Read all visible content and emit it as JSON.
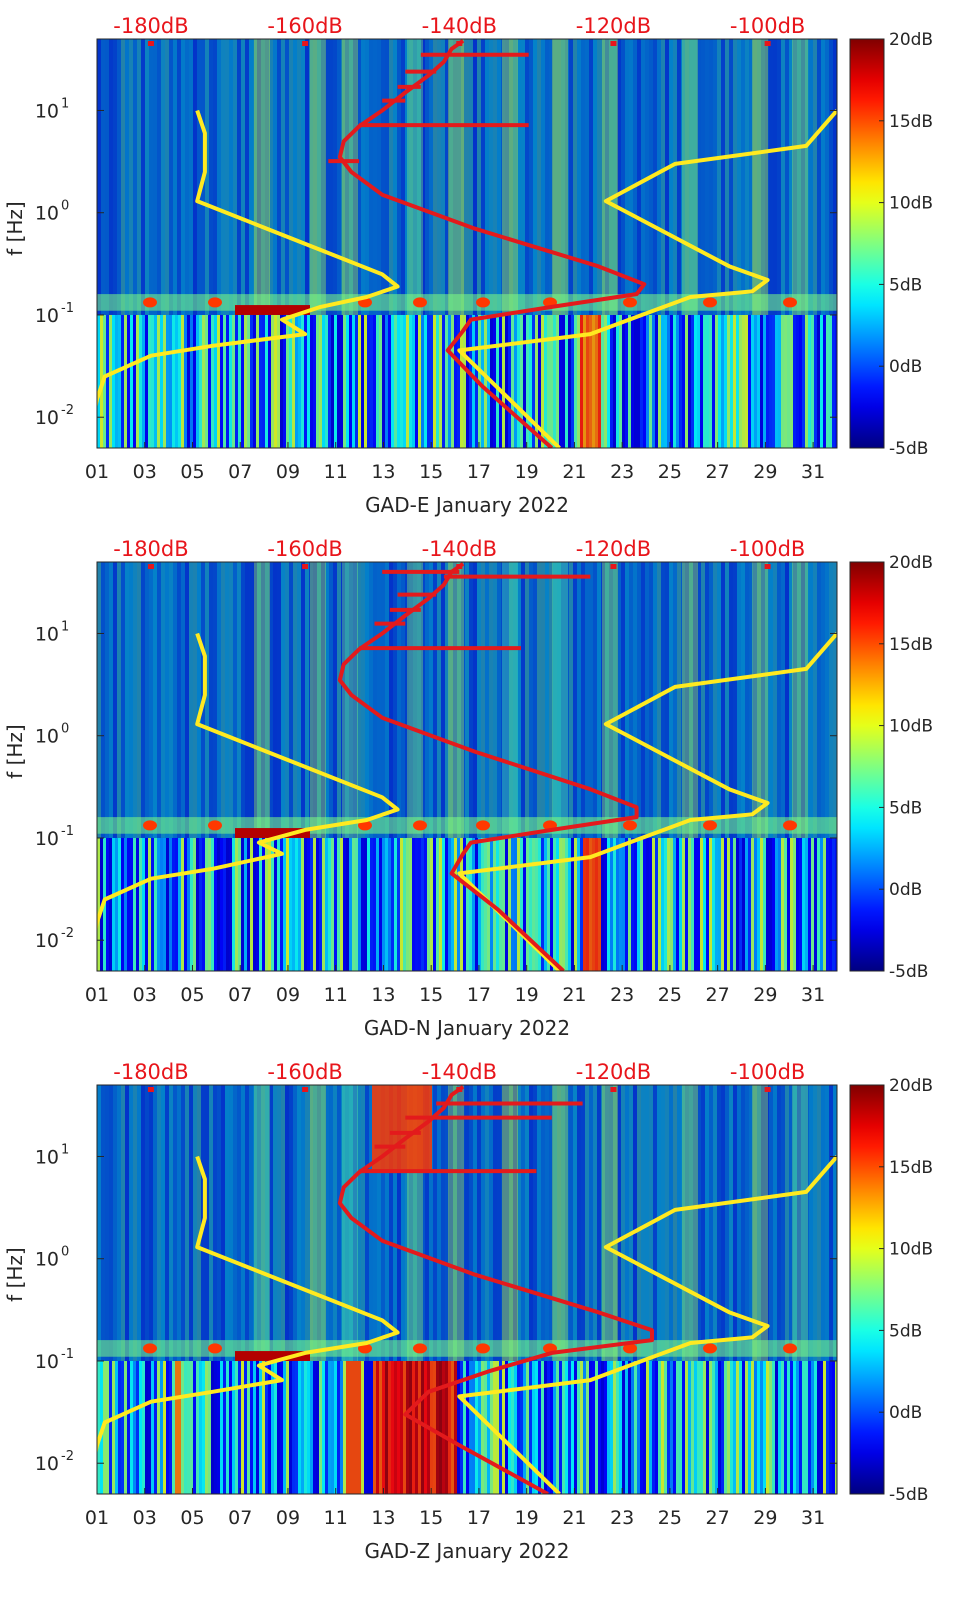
{
  "colors": {
    "yellow_curve": "#ffea20",
    "red_curve": "#e31a1c",
    "top_axis_text": "#e8151b",
    "spectrogram_background": "#071d9e",
    "axis_text": "#262626"
  },
  "colormap": "jet",
  "chart_data": [
    {
      "type": "heatmap",
      "title": "",
      "xlabel": "GAD-E January 2022",
      "ylabel": "f [Hz]",
      "x_range": [
        1,
        32
      ],
      "y_range": [
        0.005,
        50
      ],
      "y_scale": "log",
      "x_ticks": [
        "01",
        "03",
        "05",
        "07",
        "09",
        "11",
        "13",
        "15",
        "17",
        "19",
        "21",
        "23",
        "25",
        "27",
        "29",
        "31"
      ],
      "y_ticks": [
        {
          "value": 0.01,
          "base": "10",
          "exp": "-2"
        },
        {
          "value": 0.1,
          "base": "10",
          "exp": "-1"
        },
        {
          "value": 1,
          "base": "10",
          "exp": "0"
        },
        {
          "value": 10,
          "base": "10",
          "exp": "1"
        }
      ],
      "top_axis": {
        "labels": [
          "-180dB",
          "-160dB",
          "-140dB",
          "-120dB",
          "-100dB"
        ],
        "range": [
          -187,
          -91
        ]
      },
      "colorbar": {
        "labels": [
          "20dB",
          "15dB",
          "10dB",
          "5dB",
          "0dB",
          "-5dB"
        ],
        "range": [
          -5,
          20
        ]
      },
      "overlay_curves": [
        {
          "color": "yellow",
          "axis": "top_dB",
          "points": [
            [
              -188,
              0.005
            ],
            [
              -187.5,
              0.01
            ],
            [
              -187,
              0.015
            ],
            [
              -186,
              0.025
            ],
            [
              -180,
              0.04
            ],
            [
              -172,
              0.05
            ],
            [
              -160,
              0.065
            ],
            [
              -163,
              0.09
            ],
            [
              -158,
              0.12
            ],
            [
              -152,
              0.15
            ],
            [
              -148,
              0.19
            ],
            [
              -150,
              0.25
            ],
            [
              -165,
              0.7
            ],
            [
              -174,
              1.3
            ],
            [
              -173,
              2.5
            ],
            [
              -173,
              6
            ],
            [
              -174,
              10
            ]
          ]
        },
        {
          "color": "yellow",
          "axis": "top_dB",
          "points": [
            [
              -91,
              10
            ],
            [
              -95,
              4.5
            ],
            [
              -112,
              3.0
            ],
            [
              -121,
              1.3
            ],
            [
              -105,
              0.3
            ],
            [
              -100,
              0.22
            ],
            [
              -102,
              0.17
            ],
            [
              -110,
              0.15
            ],
            [
              -123,
              0.065
            ],
            [
              -140,
              0.045
            ],
            [
              -127,
              0.005
            ]
          ]
        },
        {
          "color": "red",
          "axis": "top_dB",
          "points": [
            [
              -128,
              0.005
            ],
            [
              -137,
              0.02
            ],
            [
              -141.5,
              0.045
            ],
            [
              -139.5,
              0.07
            ],
            [
              -138.5,
              0.09
            ],
            [
              -128,
              0.12
            ],
            [
              -117,
              0.16
            ],
            [
              -116,
              0.2
            ],
            [
              -122,
              0.3
            ],
            [
              -138,
              0.7
            ],
            [
              -150,
              1.5
            ],
            [
              -154,
              2.5
            ],
            [
              -155.5,
              3.5
            ],
            [
              -155,
              5
            ],
            [
              -153,
              7
            ],
            [
              -150,
              10
            ],
            [
              -147,
              15
            ],
            [
              -144,
              22
            ],
            [
              -142,
              30
            ],
            [
              -141,
              40
            ],
            [
              -139.5,
              48
            ]
          ]
        },
        {
          "color": "red",
          "axis": "top_dB",
          "points": [
            [
              -131,
              35
            ],
            [
              -145,
              35
            ]
          ]
        },
        {
          "color": "red",
          "axis": "top_dB",
          "points": [
            [
              -131,
              7.2
            ],
            [
              -153,
              7.2
            ]
          ]
        },
        {
          "color": "red",
          "axis": "top_dB",
          "points": [
            [
              -143,
              24
            ],
            [
              -147,
              24
            ]
          ]
        },
        {
          "color": "red",
          "axis": "top_dB",
          "points": [
            [
              -145,
              17
            ],
            [
              -148,
              17
            ]
          ]
        },
        {
          "color": "red",
          "axis": "top_dB",
          "points": [
            [
              -147,
              12.5
            ],
            [
              -150,
              12.5
            ]
          ]
        },
        {
          "color": "red",
          "axis": "top_dB",
          "points": [
            [
              -153,
              3.2
            ],
            [
              -157,
              3.2
            ]
          ]
        }
      ]
    },
    {
      "type": "heatmap",
      "title": "",
      "xlabel": "GAD-N January 2022",
      "ylabel": "f [Hz]",
      "x_range": [
        1,
        32
      ],
      "y_range": [
        0.005,
        50
      ],
      "y_scale": "log",
      "x_ticks": [
        "01",
        "03",
        "05",
        "07",
        "09",
        "11",
        "13",
        "15",
        "17",
        "19",
        "21",
        "23",
        "25",
        "27",
        "29",
        "31"
      ],
      "y_ticks": [
        {
          "value": 0.01,
          "base": "10",
          "exp": "-2"
        },
        {
          "value": 0.1,
          "base": "10",
          "exp": "-1"
        },
        {
          "value": 1,
          "base": "10",
          "exp": "0"
        },
        {
          "value": 10,
          "base": "10",
          "exp": "1"
        }
      ],
      "top_axis": {
        "labels": [
          "-180dB",
          "-160dB",
          "-140dB",
          "-120dB",
          "-100dB"
        ],
        "range": [
          -187,
          -91
        ]
      },
      "colorbar": {
        "labels": [
          "20dB",
          "15dB",
          "10dB",
          "5dB",
          "0dB",
          "-5dB"
        ],
        "range": [
          -5,
          20
        ]
      },
      "overlay_curves": [
        {
          "color": "yellow",
          "axis": "top_dB",
          "points": [
            [
              -188,
              0.005
            ],
            [
              -187.5,
              0.01
            ],
            [
              -187,
              0.015
            ],
            [
              -186,
              0.025
            ],
            [
              -180,
              0.04
            ],
            [
              -172,
              0.05
            ],
            [
              -163,
              0.07
            ],
            [
              -166,
              0.09
            ],
            [
              -160,
              0.12
            ],
            [
              -152,
              0.15
            ],
            [
              -148,
              0.19
            ],
            [
              -150,
              0.25
            ],
            [
              -165,
              0.7
            ],
            [
              -174,
              1.3
            ],
            [
              -173,
              2.5
            ],
            [
              -173,
              6
            ],
            [
              -174,
              10
            ]
          ]
        },
        {
          "color": "yellow",
          "axis": "top_dB",
          "points": [
            [
              -91,
              10
            ],
            [
              -95,
              4.5
            ],
            [
              -112,
              3.0
            ],
            [
              -121,
              1.3
            ],
            [
              -105,
              0.3
            ],
            [
              -100,
              0.22
            ],
            [
              -102,
              0.17
            ],
            [
              -110,
              0.15
            ],
            [
              -123,
              0.065
            ],
            [
              -140,
              0.045
            ],
            [
              -127,
              0.005
            ]
          ]
        },
        {
          "color": "red",
          "axis": "top_dB",
          "points": [
            [
              -126.5,
              0.005
            ],
            [
              -135,
              0.02
            ],
            [
              -141,
              0.045
            ],
            [
              -139.5,
              0.07
            ],
            [
              -138.5,
              0.09
            ],
            [
              -128,
              0.12
            ],
            [
              -117,
              0.16
            ],
            [
              -117,
              0.2
            ],
            [
              -123,
              0.3
            ],
            [
              -138,
              0.7
            ],
            [
              -150,
              1.5
            ],
            [
              -154,
              2.5
            ],
            [
              -155.5,
              3.5
            ],
            [
              -155,
              5
            ],
            [
              -153,
              7
            ],
            [
              -150,
              10
            ],
            [
              -147,
              15
            ],
            [
              -144,
              22
            ],
            [
              -142,
              30
            ],
            [
              -141,
              40
            ],
            [
              -139.5,
              48
            ]
          ]
        },
        {
          "color": "red",
          "axis": "top_dB",
          "points": [
            [
              -123,
              36
            ],
            [
              -142,
              36
            ]
          ]
        },
        {
          "color": "red",
          "axis": "top_dB",
          "points": [
            [
              -132,
              7.2
            ],
            [
              -153,
              7.2
            ]
          ]
        },
        {
          "color": "red",
          "axis": "top_dB",
          "points": [
            [
              -140,
              40
            ],
            [
              -150,
              40
            ]
          ]
        },
        {
          "color": "red",
          "axis": "top_dB",
          "points": [
            [
              -143,
              24
            ],
            [
              -148,
              24
            ]
          ]
        },
        {
          "color": "red",
          "axis": "top_dB",
          "points": [
            [
              -145,
              17
            ],
            [
              -149,
              17
            ]
          ]
        },
        {
          "color": "red",
          "axis": "top_dB",
          "points": [
            [
              -147,
              12.5
            ],
            [
              -151,
              12.5
            ]
          ]
        }
      ]
    },
    {
      "type": "heatmap",
      "title": "",
      "xlabel": "GAD-Z January 2022",
      "ylabel": "f [Hz]",
      "x_range": [
        1,
        32
      ],
      "y_range": [
        0.005,
        50
      ],
      "y_scale": "log",
      "x_ticks": [
        "01",
        "03",
        "05",
        "07",
        "09",
        "11",
        "13",
        "15",
        "17",
        "19",
        "21",
        "23",
        "25",
        "27",
        "29",
        "31"
      ],
      "y_ticks": [
        {
          "value": 0.01,
          "base": "10",
          "exp": "-2"
        },
        {
          "value": 0.1,
          "base": "10",
          "exp": "-1"
        },
        {
          "value": 1,
          "base": "10",
          "exp": "0"
        },
        {
          "value": 10,
          "base": "10",
          "exp": "1"
        }
      ],
      "top_axis": {
        "labels": [
          "-180dB",
          "-160dB",
          "-140dB",
          "-120dB",
          "-100dB"
        ],
        "range": [
          -187,
          -91
        ]
      },
      "colorbar": {
        "labels": [
          "20dB",
          "15dB",
          "10dB",
          "5dB",
          "0dB",
          "-5dB"
        ],
        "range": [
          -5,
          20
        ]
      },
      "overlay_curves": [
        {
          "color": "yellow",
          "axis": "top_dB",
          "points": [
            [
              -188,
              0.005
            ],
            [
              -187.5,
              0.01
            ],
            [
              -187,
              0.015
            ],
            [
              -186,
              0.025
            ],
            [
              -180,
              0.04
            ],
            [
              -172,
              0.05
            ],
            [
              -163,
              0.065
            ],
            [
              -166,
              0.09
            ],
            [
              -160,
              0.12
            ],
            [
              -152,
              0.15
            ],
            [
              -148,
              0.19
            ],
            [
              -150,
              0.25
            ],
            [
              -165,
              0.7
            ],
            [
              -174,
              1.3
            ],
            [
              -173,
              2.5
            ],
            [
              -173,
              6
            ],
            [
              -174,
              10
            ]
          ]
        },
        {
          "color": "yellow",
          "axis": "top_dB",
          "points": [
            [
              -91,
              10
            ],
            [
              -95,
              4.5
            ],
            [
              -112,
              3.0
            ],
            [
              -121,
              1.3
            ],
            [
              -105,
              0.3
            ],
            [
              -100,
              0.22
            ],
            [
              -102,
              0.17
            ],
            [
              -110,
              0.15
            ],
            [
              -123,
              0.065
            ],
            [
              -140,
              0.045
            ],
            [
              -127,
              0.005
            ]
          ]
        },
        {
          "color": "red",
          "axis": "top_dB",
          "points": [
            [
              -128.5,
              0.005
            ],
            [
              -140,
              0.015
            ],
            [
              -147,
              0.03
            ],
            [
              -144,
              0.05
            ],
            [
              -136,
              0.08
            ],
            [
              -128,
              0.12
            ],
            [
              -115,
              0.16
            ],
            [
              -115,
              0.2
            ],
            [
              -122,
              0.3
            ],
            [
              -138,
              0.7
            ],
            [
              -150,
              1.5
            ],
            [
              -154,
              2.5
            ],
            [
              -155.5,
              3.5
            ],
            [
              -155,
              5
            ],
            [
              -153,
              7
            ],
            [
              -150,
              10
            ],
            [
              -147,
              15
            ],
            [
              -144,
              22
            ],
            [
              -142,
              30
            ],
            [
              -141,
              40
            ],
            [
              -139.5,
              48
            ]
          ]
        },
        {
          "color": "red",
          "axis": "top_dB",
          "points": [
            [
              -124,
              33
            ],
            [
              -143,
              33
            ]
          ]
        },
        {
          "color": "red",
          "axis": "top_dB",
          "points": [
            [
              -130,
              7.2
            ],
            [
              -153,
              7.2
            ]
          ]
        },
        {
          "color": "red",
          "axis": "top_dB",
          "points": [
            [
              -128,
              24
            ],
            [
              -147,
              24
            ]
          ]
        },
        {
          "color": "red",
          "axis": "top_dB",
          "points": [
            [
              -145,
              17
            ],
            [
              -149,
              17
            ]
          ]
        },
        {
          "color": "red",
          "axis": "top_dB",
          "points": [
            [
              -147,
              12.5
            ],
            [
              -151,
              12.5
            ]
          ]
        }
      ]
    }
  ]
}
